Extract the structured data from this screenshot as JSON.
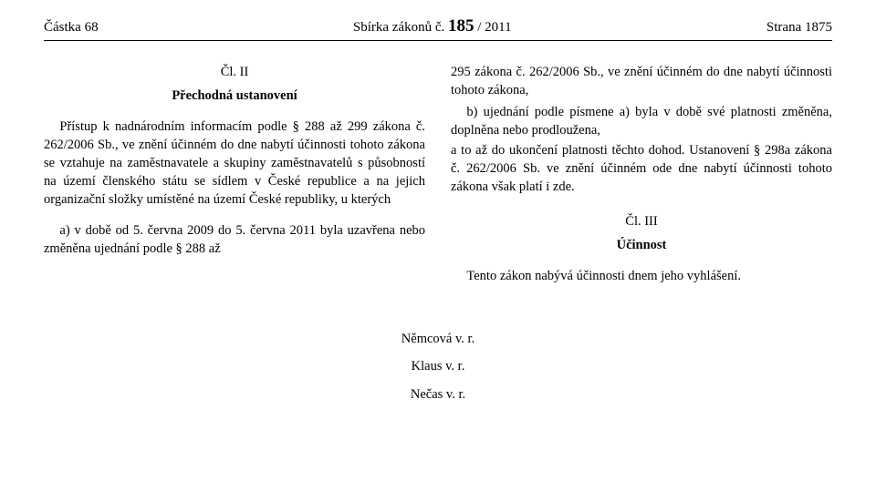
{
  "header": {
    "left": "Částka 68",
    "center_prefix": "Sbírka zákonů č. ",
    "center_num": "185",
    "center_suffix": " / 2011",
    "right": "Strana 1875"
  },
  "left_col": {
    "article_head": "Čl. II",
    "article_title": "Přechodná ustanovení",
    "p1": "Přístup k nadnárodním informacím podle § 288 až 299 zákona č. 262/2006 Sb., ve znění účinném do dne nabytí účinnosti tohoto zákona se vztahuje na zaměstnavatele a skupiny zaměstnavatelů s působností na území členského státu se sídlem v České republice a na jejich organizační složky umístěné na území České republiky, u kterých",
    "item_a": "a) v době od 5. června 2009 do 5. června 2011 byla uzavřena nebo změněna ujednání podle § 288 až"
  },
  "right_col": {
    "p1_cont": "295 zákona č. 262/2006 Sb., ve znění účinném do dne nabytí účinnosti tohoto zákona,",
    "item_b": "b) ujednání podle písmene a) byla v době své platnosti změněna, doplněna nebo prodloužena,",
    "p2": "a to až do ukončení platnosti těchto dohod. Ustanovení § 298a zákona č. 262/2006 Sb. ve znění účinném ode dne nabytí účinnosti tohoto zákona však platí i zde.",
    "article_head": "Čl. III",
    "article_title": "Účinnost",
    "p3": "Tento zákon nabývá účinnosti dnem jeho vyhlášení."
  },
  "signatures": {
    "s1": "Němcová v. r.",
    "s2": "Klaus v. r.",
    "s3": "Nečas v. r."
  }
}
